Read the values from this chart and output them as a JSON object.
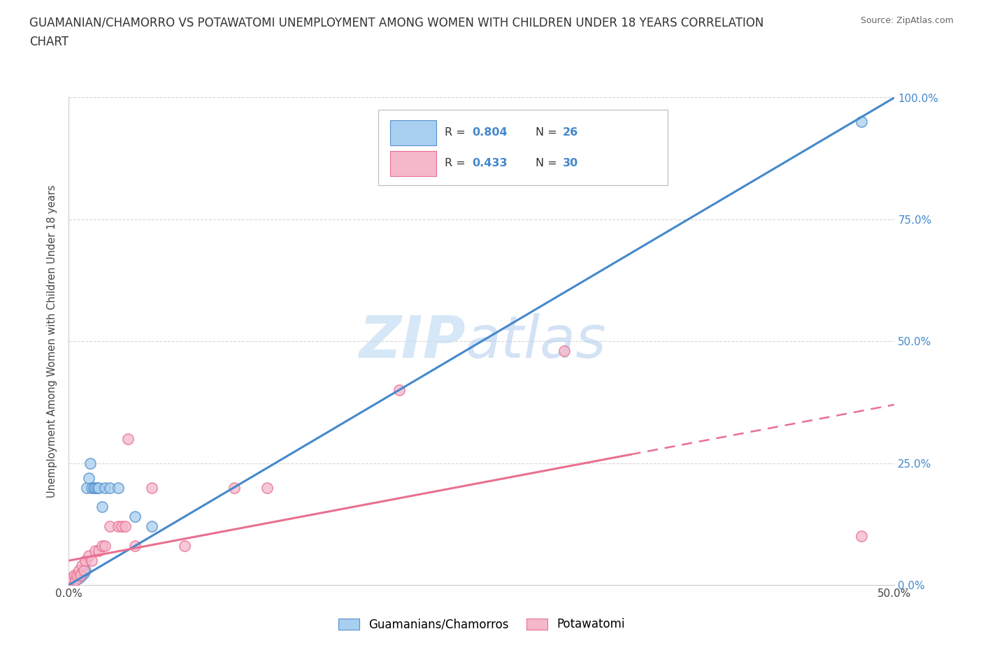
{
  "title_line1": "GUAMANIAN/CHAMORRO VS POTAWATOMI UNEMPLOYMENT AMONG WOMEN WITH CHILDREN UNDER 18 YEARS CORRELATION",
  "title_line2": "CHART",
  "source": "Source: ZipAtlas.com",
  "ylabel": "Unemployment Among Women with Children Under 18 years",
  "xlim": [
    0.0,
    0.5
  ],
  "ylim": [
    0.0,
    1.0
  ],
  "xticks": [
    0.0,
    0.1,
    0.2,
    0.3,
    0.4,
    0.5
  ],
  "xtick_labels_show": [
    "0.0%",
    "",
    "",
    "",
    "",
    "50.0%"
  ],
  "yticks": [
    0.0,
    0.25,
    0.5,
    0.75,
    1.0
  ],
  "ytick_labels": [
    "0.0%",
    "25.0%",
    "50.0%",
    "75.0%",
    "100.0%"
  ],
  "blue_fill": "#a8cef0",
  "pink_fill": "#f5b8cb",
  "blue_edge": "#5590cc",
  "pink_edge": "#e87090",
  "blue_line_color": "#4488cc",
  "pink_line_color": "#e87090",
  "watermark_zip_color": "#c5dff5",
  "watermark_atlas_color": "#b0ccee",
  "legend_label_blue": "Guamanians/Chamorros",
  "legend_label_pink": "Potawatomi",
  "blue_scatter_x": [
    0.0,
    0.001,
    0.002,
    0.003,
    0.004,
    0.005,
    0.006,
    0.007,
    0.008,
    0.009,
    0.01,
    0.011,
    0.012,
    0.013,
    0.014,
    0.015,
    0.016,
    0.017,
    0.018,
    0.02,
    0.022,
    0.025,
    0.03,
    0.04,
    0.05,
    0.48
  ],
  "blue_scatter_y": [
    0.0,
    0.005,
    0.01,
    0.015,
    0.01,
    0.02,
    0.015,
    0.02,
    0.02,
    0.025,
    0.03,
    0.2,
    0.22,
    0.25,
    0.2,
    0.2,
    0.2,
    0.2,
    0.2,
    0.16,
    0.2,
    0.2,
    0.2,
    0.14,
    0.12,
    0.95
  ],
  "pink_scatter_x": [
    0.0,
    0.001,
    0.002,
    0.003,
    0.004,
    0.005,
    0.006,
    0.007,
    0.008,
    0.009,
    0.01,
    0.012,
    0.014,
    0.016,
    0.018,
    0.02,
    0.022,
    0.025,
    0.03,
    0.032,
    0.034,
    0.036,
    0.04,
    0.05,
    0.07,
    0.1,
    0.12,
    0.2,
    0.3,
    0.48
  ],
  "pink_scatter_y": [
    0.0,
    0.01,
    0.015,
    0.02,
    0.01,
    0.02,
    0.03,
    0.02,
    0.04,
    0.03,
    0.05,
    0.06,
    0.05,
    0.07,
    0.07,
    0.08,
    0.08,
    0.12,
    0.12,
    0.12,
    0.12,
    0.3,
    0.08,
    0.2,
    0.08,
    0.2,
    0.2,
    0.4,
    0.48,
    0.1
  ],
  "blue_line_x0": 0.0,
  "blue_line_y0": 0.0,
  "blue_line_x1": 0.5,
  "blue_line_y1": 1.0,
  "pink_line_x0": 0.0,
  "pink_line_y0": 0.05,
  "pink_line_solid_x1": 0.34,
  "pink_line_x1": 0.5,
  "pink_line_y1": 0.37
}
